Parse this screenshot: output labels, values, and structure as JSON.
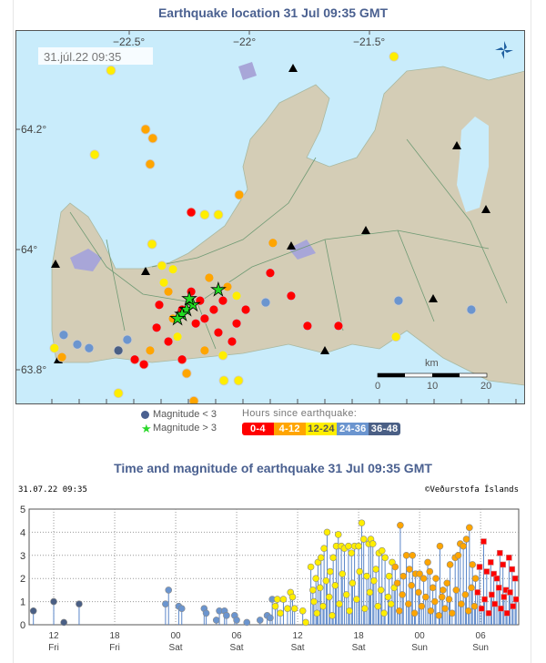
{
  "map_title": "Earthquake location   31 Jul 09:35 GMT",
  "map_timestamp": "31.júl.22  09:35",
  "lon_ticks": [
    {
      "v": -22.5,
      "label": "−22.5°"
    },
    {
      "v": -22,
      "label": "−22°"
    },
    {
      "v": -21.5,
      "label": "−21.5°"
    }
  ],
  "lat_ticks": [
    {
      "v": 64.2,
      "label": "64.2°"
    },
    {
      "v": 64,
      "label": "64°"
    },
    {
      "v": 63.8,
      "label": "63.8°"
    }
  ],
  "scale": {
    "unit": "km",
    "labels": [
      "0",
      "10",
      "20"
    ]
  },
  "legend": {
    "mag_small": "Magnitude < 3",
    "mag_large": "Magnitude > 3",
    "hours_title": "Hours since earthquake:",
    "classes": [
      {
        "label": "0-4",
        "color": "#ff0000"
      },
      {
        "label": "4-12",
        "color": "#ffa500"
      },
      {
        "label": "12-24",
        "color": "#ffee00",
        "text": "#555"
      },
      {
        "label": "24-36",
        "color": "#6b95cf"
      },
      {
        "label": "36-48",
        "color": "#4a5f85"
      }
    ]
  },
  "map_events": [
    [
      -22.576,
      64.298,
      2
    ],
    [
      -22.432,
      64.2,
      1
    ],
    [
      -22.402,
      64.185,
      1
    ],
    [
      -22.644,
      64.158,
      2
    ],
    [
      -22.413,
      64.142,
      1
    ],
    [
      -22.242,
      64.062,
      0
    ],
    [
      -22.186,
      64.058,
      2
    ],
    [
      -22.129,
      64.058,
      2
    ],
    [
      -22.042,
      64.091,
      1
    ],
    [
      -21.902,
      64.011,
      1
    ],
    [
      -22.405,
      64.009,
      2
    ],
    [
      -22.364,
      63.973,
      2
    ],
    [
      -22.318,
      63.967,
      2
    ],
    [
      -21.398,
      64.321,
      2
    ],
    [
      -21.913,
      63.961,
      0
    ],
    [
      -21.826,
      63.923,
      0
    ],
    [
      -21.758,
      63.873,
      0
    ],
    [
      -21.629,
      63.873,
      0
    ],
    [
      -21.379,
      63.915,
      3
    ],
    [
      -21.076,
      63.9,
      3
    ],
    [
      -21.39,
      63.855,
      2
    ],
    [
      -22.545,
      63.761,
      2
    ],
    [
      -22.231,
      63.748,
      1
    ],
    [
      -22.106,
      63.782,
      2
    ],
    [
      -22.045,
      63.782,
      2
    ],
    [
      -22.773,
      63.858,
      3
    ],
    [
      -22.716,
      63.842,
      3
    ],
    [
      -22.667,
      63.836,
      3
    ],
    [
      -22.811,
      63.836,
      2
    ],
    [
      -22.78,
      63.821,
      1
    ],
    [
      -22.508,
      63.85,
      3
    ],
    [
      -22.545,
      63.832,
      4
    ],
    [
      -22.477,
      63.817,
      0
    ],
    [
      -22.413,
      63.832,
      1
    ],
    [
      -22.386,
      63.87,
      0
    ],
    [
      -22.337,
      63.847,
      0
    ],
    [
      -22.28,
      63.817,
      0
    ],
    [
      -22.186,
      63.832,
      1
    ],
    [
      -22.11,
      63.824,
      2
    ],
    [
      -21.932,
      63.912,
      3
    ],
    [
      -22.053,
      63.877,
      0
    ],
    [
      -22.015,
      63.9,
      0
    ],
    [
      -22.091,
      63.938,
      1
    ],
    [
      -22.167,
      63.953,
      1
    ],
    [
      -22.337,
      63.93,
      1
    ],
    [
      -22.375,
      63.908,
      0
    ],
    [
      -22.223,
      63.877,
      0
    ],
    [
      -22.129,
      63.862,
      0
    ],
    [
      -22.299,
      63.855,
      2
    ],
    [
      -22.072,
      63.847,
      0
    ],
    [
      -22.261,
      63.794,
      1
    ],
    [
      -22.439,
      63.809,
      0
    ],
    [
      -22.205,
      63.915,
      0
    ],
    [
      -22.148,
      63.9,
      0
    ],
    [
      -22.28,
      63.9,
      0
    ],
    [
      -22.242,
      63.93,
      0
    ],
    [
      -22.11,
      63.915,
      0
    ],
    [
      -22.186,
      63.885,
      0
    ],
    [
      -22.318,
      63.885,
      1
    ],
    [
      -22.053,
      63.923,
      2
    ],
    [
      -22.356,
      63.945,
      2
    ]
  ],
  "map_stars": [
    [
      -22.261,
      63.9
    ],
    [
      -22.28,
      63.892
    ],
    [
      -22.235,
      63.908
    ],
    [
      -22.129,
      63.933
    ],
    [
      -22.299,
      63.885
    ],
    [
      -22.25,
      63.918
    ]
  ],
  "chart_title": "Time and magnitude of earthquake   31 Jul 09:35 GMT",
  "chart_timestamp": "31.07.22 09:35",
  "copyright": "©Veðurstofa Íslands",
  "chart_data": {
    "type": "scatter",
    "x_unit": "hours since Fri 00:00",
    "now_hour": 57.58,
    "xlim": [
      9.58,
      57.75
    ],
    "ylim": [
      0,
      5
    ],
    "yticks": [
      0,
      1,
      2,
      3,
      4,
      5
    ],
    "xticks": [
      {
        "v": 12,
        "l1": "12",
        "l2": "Fri"
      },
      {
        "v": 18,
        "l1": "18",
        "l2": "Fri"
      },
      {
        "v": 24,
        "l1": "00",
        "l2": "Sat"
      },
      {
        "v": 30,
        "l1": "06",
        "l2": "Sat"
      },
      {
        "v": 36,
        "l1": "12",
        "l2": "Sat"
      },
      {
        "v": 42,
        "l1": "18",
        "l2": "Sat"
      },
      {
        "v": 48,
        "l1": "00",
        "l2": "Sun"
      },
      {
        "v": 54,
        "l1": "06",
        "l2": "Sun"
      }
    ],
    "events": [
      [
        10,
        0.6
      ],
      [
        12,
        1.0
      ],
      [
        13,
        0.1
      ],
      [
        14.5,
        0.9
      ],
      [
        23,
        0.9
      ],
      [
        23.3,
        1.5
      ],
      [
        24.3,
        0.8
      ],
      [
        24.6,
        0.7
      ],
      [
        26.8,
        0.7
      ],
      [
        27,
        0.5
      ],
      [
        28,
        0.2
      ],
      [
        28.3,
        0.6
      ],
      [
        28.8,
        0.6
      ],
      [
        29,
        0.4
      ],
      [
        29.8,
        0.4
      ],
      [
        30,
        0.2
      ],
      [
        31,
        0.1
      ],
      [
        32.3,
        0.2
      ],
      [
        33,
        0.4
      ],
      [
        33.3,
        0.3
      ],
      [
        33.5,
        1.1
      ],
      [
        33.8,
        0.8
      ],
      [
        34,
        1.1
      ],
      [
        34.3,
        0.5
      ],
      [
        34.6,
        1.1
      ],
      [
        35,
        0.7
      ],
      [
        35.3,
        1.4
      ],
      [
        35.5,
        1.2
      ],
      [
        35.7,
        0.7
      ],
      [
        36.5,
        0.6
      ],
      [
        36.8,
        0.1
      ],
      [
        37.3,
        2.5
      ],
      [
        37.5,
        1.5
      ],
      [
        37.8,
        2.0
      ],
      [
        38,
        2.7
      ],
      [
        38.3,
        2.9
      ],
      [
        38.6,
        3.3
      ],
      [
        38.9,
        4.0
      ],
      [
        39.2,
        2.3
      ],
      [
        39.5,
        2.9
      ],
      [
        39.8,
        3.4
      ],
      [
        40,
        3.9
      ],
      [
        40.3,
        3.4
      ],
      [
        40.6,
        3.3
      ],
      [
        41,
        3.4
      ],
      [
        41.3,
        3.1
      ],
      [
        41.6,
        3.4
      ],
      [
        42,
        3.4
      ],
      [
        42.3,
        4.4
      ],
      [
        42.5,
        3.7
      ],
      [
        42.8,
        2.1
      ],
      [
        43,
        3.5
      ],
      [
        43.2,
        3.7
      ],
      [
        43.4,
        3.5
      ],
      [
        43.7,
        2.4
      ],
      [
        44,
        3.1
      ],
      [
        44.3,
        3.2
      ],
      [
        44.6,
        2.9
      ],
      [
        45,
        2.1
      ],
      [
        45.3,
        2.7
      ],
      [
        45.6,
        2.5
      ],
      [
        45.8,
        1.8
      ],
      [
        46.1,
        4.3
      ],
      [
        46.4,
        2.1
      ],
      [
        46.7,
        3.0
      ],
      [
        47,
        2.4
      ],
      [
        47.3,
        3.0
      ],
      [
        47.6,
        2.2
      ],
      [
        48,
        2.2
      ],
      [
        48.4,
        2.0
      ],
      [
        48.8,
        2.7
      ],
      [
        49,
        2.3
      ],
      [
        49.3,
        1.6
      ],
      [
        49.6,
        2.0
      ],
      [
        50,
        3.4
      ],
      [
        50.3,
        1.5
      ],
      [
        50.7,
        1.8
      ],
      [
        51,
        2.6
      ],
      [
        51.5,
        2.9
      ],
      [
        51.8,
        3.0
      ],
      [
        52,
        3.5
      ],
      [
        52.3,
        3.4
      ],
      [
        52.6,
        3.7
      ],
      [
        52.9,
        4.2
      ],
      [
        53.2,
        2.6
      ],
      [
        53.5,
        2.0
      ],
      [
        53.9,
        2.5
      ],
      [
        54.3,
        3.6
      ],
      [
        54.6,
        2.3
      ],
      [
        55,
        2.7
      ],
      [
        55.3,
        2.2
      ],
      [
        55.6,
        2.0
      ],
      [
        55.9,
        3.1
      ],
      [
        56.2,
        2.6
      ],
      [
        56.5,
        1.5
      ],
      [
        56.8,
        2.9
      ],
      [
        57.1,
        2.4
      ],
      [
        57.4,
        2.0
      ],
      [
        37.6,
        1.0
      ],
      [
        37.9,
        0.5
      ],
      [
        38.2,
        1.6
      ],
      [
        38.5,
        0.8
      ],
      [
        38.8,
        1.9
      ],
      [
        39.1,
        1.2
      ],
      [
        39.4,
        0.4
      ],
      [
        39.7,
        1.7
      ],
      [
        40.1,
        0.9
      ],
      [
        40.4,
        2.2
      ],
      [
        40.8,
        1.3
      ],
      [
        41.1,
        0.6
      ],
      [
        41.4,
        1.8
      ],
      [
        41.8,
        1.1
      ],
      [
        42.1,
        2.3
      ],
      [
        42.6,
        0.7
      ],
      [
        43.1,
        1.4
      ],
      [
        43.5,
        1.9
      ],
      [
        43.9,
        0.8
      ],
      [
        44.2,
        1.5
      ],
      [
        44.5,
        0.5
      ],
      [
        44.9,
        1.2
      ],
      [
        45.2,
        0.9
      ],
      [
        45.5,
        1.6
      ],
      [
        46,
        0.6
      ],
      [
        46.3,
        1.3
      ],
      [
        46.9,
        0.9
      ],
      [
        47.2,
        1.7
      ],
      [
        47.5,
        0.5
      ],
      [
        47.9,
        1.4
      ],
      [
        48.2,
        0.8
      ],
      [
        48.6,
        1.2
      ],
      [
        49.1,
        0.6
      ],
      [
        49.5,
        1.0
      ],
      [
        49.9,
        0.4
      ],
      [
        50.2,
        1.2
      ],
      [
        50.5,
        0.7
      ],
      [
        50.9,
        1.1
      ],
      [
        51.2,
        0.5
      ],
      [
        51.6,
        1.5
      ],
      [
        52.1,
        0.9
      ],
      [
        52.5,
        1.3
      ],
      [
        52.8,
        0.6
      ],
      [
        53.1,
        1.6
      ],
      [
        53.4,
        0.8
      ],
      [
        53.7,
        1.4
      ],
      [
        54.1,
        0.7
      ],
      [
        54.4,
        1.1
      ],
      [
        54.8,
        0.5
      ],
      [
        55.1,
        1.3
      ],
      [
        55.4,
        0.9
      ],
      [
        55.8,
        1.6
      ],
      [
        56,
        0.7
      ],
      [
        56.3,
        1.2
      ],
      [
        56.6,
        0.5
      ],
      [
        56.9,
        1.4
      ],
      [
        57.2,
        0.8
      ],
      [
        57.5,
        1.1
      ]
    ]
  }
}
